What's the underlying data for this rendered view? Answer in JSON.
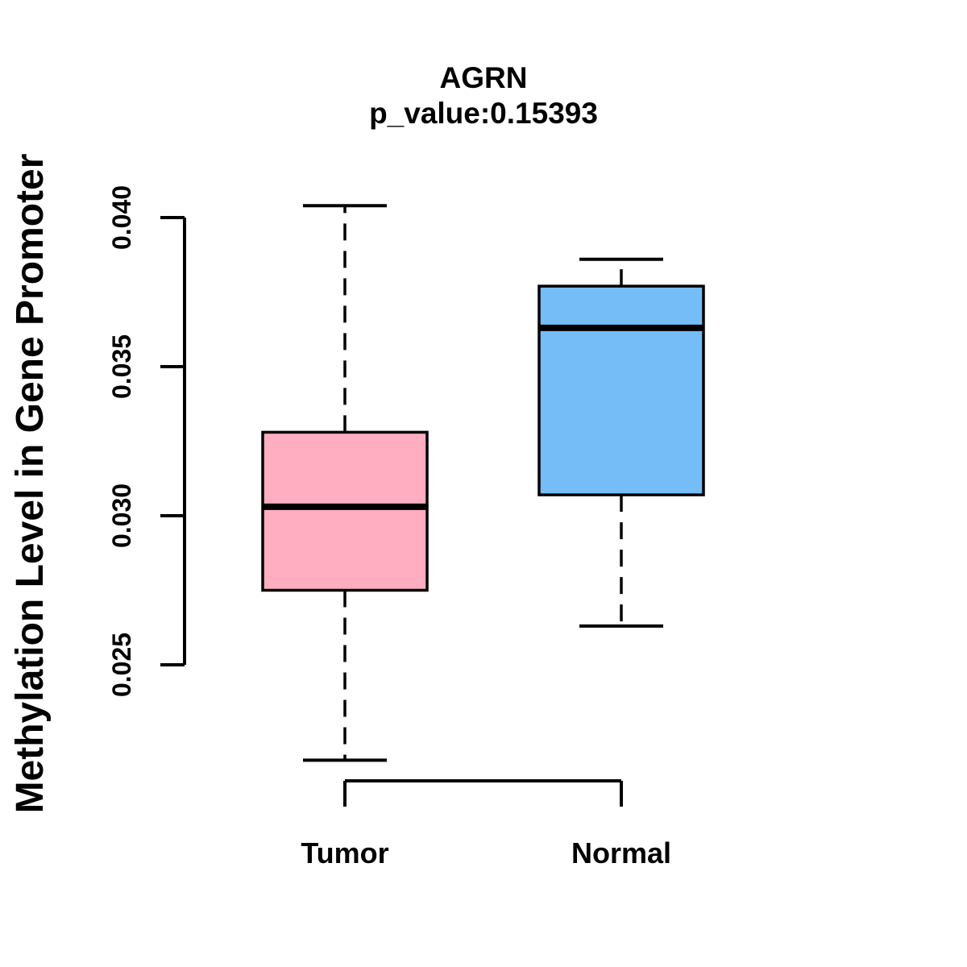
{
  "chart_data": {
    "type": "boxplot",
    "title": "AGRN",
    "subtitle": "p_value:0.15393",
    "p_value": 0.15393,
    "ylabel": "Methylation Level in Gene Promoter",
    "xlabel": "",
    "categories": [
      "Tumor",
      "Normal"
    ],
    "yticks": [
      0.025,
      0.03,
      0.035,
      0.04
    ],
    "ylim": [
      0.0218,
      0.0404
    ],
    "grid": false,
    "legend": "none",
    "series": [
      {
        "name": "Tumor",
        "fill": "#FFADC1",
        "whisker_low": 0.0218,
        "q1": 0.0275,
        "median": 0.0303,
        "q3": 0.0328,
        "whisker_high": 0.0404
      },
      {
        "name": "Normal",
        "fill": "#74BDF7",
        "whisker_low": 0.0263,
        "q1": 0.0307,
        "median": 0.0363,
        "q3": 0.0377,
        "whisker_high": 0.0386
      }
    ],
    "colors": {
      "stroke": "#000000",
      "background": "#FFFFFF",
      "tumor_fill": "#FFADC1",
      "normal_fill": "#74BDF7"
    }
  }
}
